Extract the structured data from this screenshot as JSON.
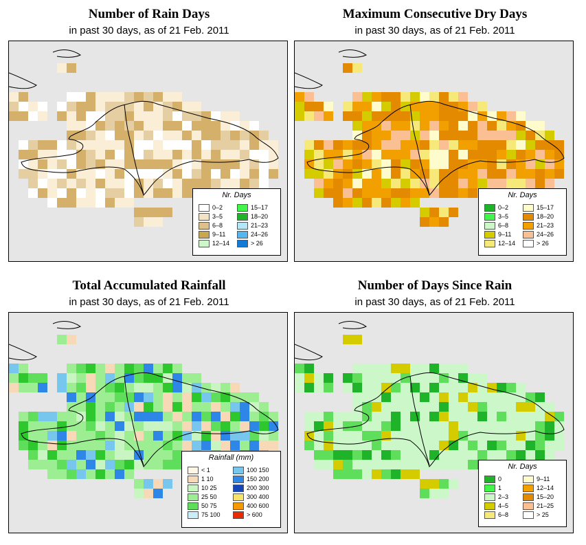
{
  "panels": [
    {
      "title": "Number of Rain Days",
      "subtitle": "in past 30 days, as of  21 Feb. 2011",
      "palette": [
        "#fbeed7",
        "#e5cea2",
        "#d4b06a",
        "#fbeed7",
        "#d4b06a",
        "#ffffff"
      ],
      "legend": {
        "title": "Nr. Days",
        "items": [
          {
            "label": "0–2",
            "color": "#ffffff"
          },
          {
            "label": "3–5",
            "color": "#f3e3c5"
          },
          {
            "label": "6–8",
            "color": "#dcc18c"
          },
          {
            "label": "9–11",
            "color": "#c9a650"
          },
          {
            "label": "12–14",
            "color": "#cdf7c8"
          },
          {
            "label": "15–17",
            "color": "#41f54a"
          },
          {
            "label": "18–20",
            "color": "#1fb32a"
          },
          {
            "label": "21–23",
            "color": "#b3e7f7"
          },
          {
            "label": "24–26",
            "color": "#52b7f0"
          },
          {
            "label": "> 26",
            "color": "#137bd4"
          }
        ]
      }
    },
    {
      "title": "Maximum Consecutive Dry Days",
      "subtitle": "in past 30 days, as of  21 Feb. 2011",
      "palette": [
        "#e38a00",
        "#f2a000",
        "#e38a00",
        "#f2a000",
        "#fbbf94",
        "#f6e97a",
        "#fefbcc",
        "#d5cc00"
      ],
      "legend": {
        "title": "Nr. Days",
        "items": [
          {
            "label": "0–2",
            "color": "#1fb32a"
          },
          {
            "label": "3–5",
            "color": "#41f54a"
          },
          {
            "label": "6–8",
            "color": "#cdf7c8"
          },
          {
            "label": "9–11",
            "color": "#d5cc00"
          },
          {
            "label": "12–14",
            "color": "#f6e97a"
          },
          {
            "label": "15–17",
            "color": "#fefbcc"
          },
          {
            "label": "18–20",
            "color": "#e38a00"
          },
          {
            "label": "21–23",
            "color": "#f2a000"
          },
          {
            "label": "24–26",
            "color": "#fbbf94"
          },
          {
            "label": "> 26",
            "color": "#ffffff"
          }
        ]
      }
    },
    {
      "title": "Total Accumulated Rainfall",
      "subtitle": "in past 30 days, as of  21 Feb. 2011",
      "palette": [
        "#9ded92",
        "#5ede5a",
        "#9ded92",
        "#2ec72d",
        "#9ded92",
        "#c8f5c2",
        "#77c6ee",
        "#f7d9b8",
        "#2e87e6"
      ],
      "legend": {
        "title": "Rainfall (mm)",
        "items": [
          {
            "label": "< 1",
            "color": "#fdf5e6"
          },
          {
            "label": "1   10",
            "color": "#f7d9b8"
          },
          {
            "label": "10   25",
            "color": "#c8f5c2"
          },
          {
            "label": "25   50",
            "color": "#9ded92"
          },
          {
            "label": "50   75",
            "color": "#5ede5a"
          },
          {
            "label": "75  100",
            "color": "#c9eef7"
          },
          {
            "label": "100  150",
            "color": "#77c6ee"
          },
          {
            "label": "150  200",
            "color": "#2e87e6"
          },
          {
            "label": "200  300",
            "color": "#1546b8"
          },
          {
            "label": "300  400",
            "color": "#f6e36a"
          },
          {
            "label": "400  600",
            "color": "#f59a00"
          },
          {
            "label": "> 600",
            "color": "#ea2a00"
          }
        ]
      }
    },
    {
      "title": "Number of Days Since Rain",
      "subtitle": "in past 30 days, as of  21 Feb. 2011",
      "palette": [
        "#ccf7c9",
        "#ccf7c9",
        "#ccf7c9",
        "#d5cc00",
        "#ccf7c9",
        "#ccf7c9",
        "#5ede5a",
        "#1fb32a"
      ],
      "legend": {
        "title": "Nr. Days",
        "items": [
          {
            "label": "0",
            "color": "#1fb32a"
          },
          {
            "label": "1",
            "color": "#41f54a"
          },
          {
            "label": "2–3",
            "color": "#cdf7c8"
          },
          {
            "label": "4–5",
            "color": "#d5cc00"
          },
          {
            "label": "6–8",
            "color": "#f6e97a"
          },
          {
            "label": "9–11",
            "color": "#fefbcc"
          },
          {
            "label": "12–14",
            "color": "#f2a000"
          },
          {
            "label": "15–20",
            "color": "#e38a00"
          },
          {
            "label": "21–25",
            "color": "#fbbf94"
          },
          {
            "label": "> 25",
            "color": "#ffffff"
          }
        ]
      }
    }
  ]
}
